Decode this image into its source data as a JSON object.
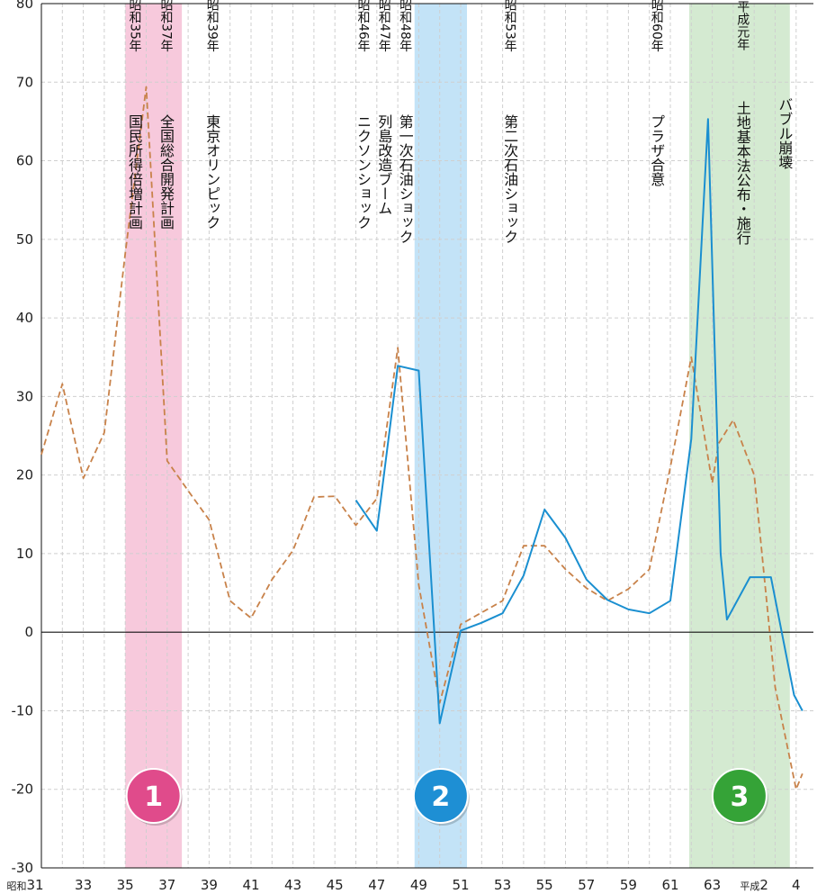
{
  "chart_data": {
    "type": "line",
    "title": "",
    "xlabel": "",
    "ylabel": "",
    "ylim": [
      -30,
      80
    ],
    "yticks": [
      -30,
      -20,
      -10,
      0,
      10,
      20,
      30,
      40,
      50,
      60,
      70,
      80
    ],
    "grid": true,
    "x_start_label": "昭和31",
    "x_tick_labels": [
      {
        "label": "昭和31",
        "year": 1956
      },
      {
        "label": "33",
        "year": 1958
      },
      {
        "label": "35",
        "year": 1960
      },
      {
        "label": "37",
        "year": 1962
      },
      {
        "label": "39",
        "year": 1964
      },
      {
        "label": "41",
        "year": 1966
      },
      {
        "label": "43",
        "year": 1968
      },
      {
        "label": "45",
        "year": 1970
      },
      {
        "label": "47",
        "year": 1972
      },
      {
        "label": "49",
        "year": 1974
      },
      {
        "label": "51",
        "year": 1976
      },
      {
        "label": "53",
        "year": 1978
      },
      {
        "label": "55",
        "year": 1980
      },
      {
        "label": "57",
        "year": 1982
      },
      {
        "label": "59",
        "year": 1984
      },
      {
        "label": "61",
        "year": 1986
      },
      {
        "label": "63",
        "year": 1988
      },
      {
        "label": "平成2",
        "year": 1990
      },
      {
        "label": "4",
        "year": 1992
      }
    ],
    "series": [
      {
        "color": "#c8824a",
        "style": "dashed",
        "points": [
          [
            1956,
            22.6
          ],
          [
            1957,
            31.6
          ],
          [
            1958,
            19.6
          ],
          [
            1959,
            25.4
          ],
          [
            1960,
            48.2
          ],
          [
            1961,
            69.4
          ],
          [
            1962,
            21.8
          ],
          [
            1963,
            18.0
          ],
          [
            1964,
            14.3
          ],
          [
            1965,
            4.0
          ],
          [
            1966,
            1.8
          ],
          [
            1967,
            6.7
          ],
          [
            1968,
            10.4
          ],
          [
            1969,
            17.2
          ],
          [
            1970,
            17.3
          ],
          [
            1971,
            13.6
          ],
          [
            1972,
            17.0
          ],
          [
            1973,
            36.2
          ],
          [
            1974,
            6.0
          ],
          [
            1975,
            -9.0
          ],
          [
            1976,
            1.0
          ],
          [
            1977,
            2.5
          ],
          [
            1978,
            4.0
          ],
          [
            1979,
            11.0
          ],
          [
            1980,
            11.0
          ],
          [
            1981,
            8.0
          ],
          [
            1982,
            5.6
          ],
          [
            1983,
            4.0
          ],
          [
            1984,
            5.5
          ],
          [
            1985,
            8.0
          ],
          [
            1986,
            21.0
          ],
          [
            1987,
            35.0
          ],
          [
            1988,
            19.0
          ],
          [
            1988.3,
            24.0
          ],
          [
            1989,
            27.0
          ],
          [
            1990,
            20.0
          ],
          [
            1991,
            -7.0
          ],
          [
            1992,
            -20.0
          ],
          [
            1992.3,
            -18.0
          ]
        ]
      },
      {
        "color": "#1a8fd0",
        "style": "solid",
        "points": [
          [
            1971,
            16.8
          ],
          [
            1972,
            12.9
          ],
          [
            1973,
            33.9
          ],
          [
            1974,
            33.3
          ],
          [
            1975,
            -11.6
          ],
          [
            1976,
            0.2
          ],
          [
            1977,
            1.2
          ],
          [
            1978,
            2.4
          ],
          [
            1979,
            7.2
          ],
          [
            1980,
            15.6
          ],
          [
            1981,
            12.0
          ],
          [
            1982,
            6.7
          ],
          [
            1983,
            4.1
          ],
          [
            1984,
            2.9
          ],
          [
            1985,
            2.4
          ],
          [
            1986,
            4.0
          ],
          [
            1987,
            24.6
          ],
          [
            1987.8,
            65.3
          ],
          [
            1988.4,
            10.0
          ],
          [
            1988.7,
            1.6
          ],
          [
            1989.8,
            7.0
          ],
          [
            1990.8,
            7.0
          ],
          [
            1991.9,
            -8.0
          ],
          [
            1992.3,
            -10.0
          ]
        ]
      }
    ],
    "bands": [
      {
        "from": 1960,
        "to": 1962.7,
        "color": "#f7c9dc",
        "badge": "1",
        "badge_color": "#e04b8b"
      },
      {
        "from": 1973.8,
        "to": 1976.3,
        "color": "#c3e3f7",
        "badge": "2",
        "badge_color": "#1e8fd4"
      },
      {
        "from": 1986.9,
        "to": 1991.7,
        "color": "#d4ead1",
        "badge": "3",
        "badge_color": "#35a337"
      }
    ],
    "annotations": [
      {
        "x": 1960.1,
        "year": "昭和35年",
        "text": "国民所得倍増計画"
      },
      {
        "x": 1961.6,
        "year": "昭和37年",
        "text": "全国総合開発計画"
      },
      {
        "x": 1963.8,
        "year": "昭和39年",
        "text": "東京オリンピック"
      },
      {
        "x": 1971.0,
        "year": "昭和46年",
        "text": "ニクソンショック"
      },
      {
        "x": 1972.0,
        "year": "昭和47年",
        "text": "列島改造ブーム"
      },
      {
        "x": 1973.0,
        "year": "昭和48年",
        "text": "第一次石油ショック"
      },
      {
        "x": 1978.0,
        "year": "昭和53年",
        "text": "第二次石油ショック"
      },
      {
        "x": 1985.0,
        "year": "昭和60年",
        "text": "プラザ合意"
      },
      {
        "x": 1989.1,
        "year": "平成元年",
        "text": "土地基本法公布・施行"
      },
      {
        "x": 1991.1,
        "year": "",
        "text": "バブル崩壊"
      }
    ]
  }
}
